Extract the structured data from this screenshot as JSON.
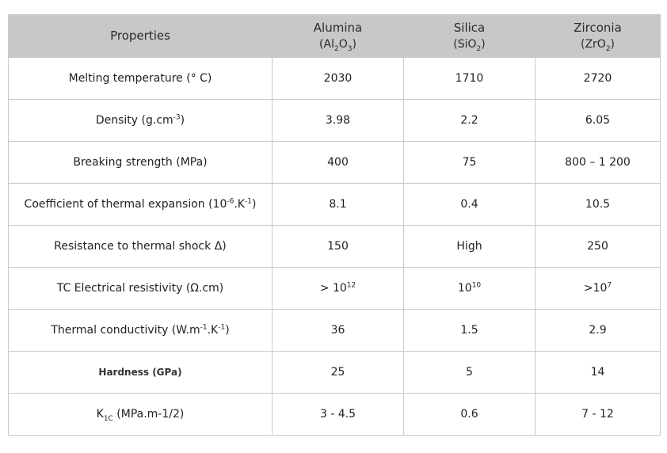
{
  "header": {
    "properties": "Properties",
    "materials": [
      {
        "name": "Alumina",
        "formula_pre": "(Al",
        "sub1": "2",
        "formula_mid": "O",
        "sub2": "3",
        "formula_post": ")"
      },
      {
        "name": "Silica",
        "formula_pre": "(SiO",
        "sub1": "2",
        "formula_mid": "",
        "sub2": "",
        "formula_post": ")"
      },
      {
        "name": "Zirconia",
        "formula_pre": "(ZrO",
        "sub1": "2",
        "formula_mid": "",
        "sub2": "",
        "formula_post": ")"
      }
    ]
  },
  "rows": [
    {
      "label": "Melting temperature (° C)",
      "values": [
        "2030",
        "1710",
        "2720"
      ]
    },
    {
      "label_pre": "Density (g.cm",
      "label_sup": "-3",
      "label_post": ")",
      "values": [
        "3.98",
        "2.2",
        "6.05"
      ]
    },
    {
      "label": "Breaking strength (MPa)",
      "values": [
        "400",
        "75",
        "800 – 1 200"
      ]
    },
    {
      "label_pre": "Coefficient of thermal expansion (10",
      "label_sup": "-6",
      "label_mid": ".K",
      "label_sup2": "-1",
      "label_post": ")",
      "values": [
        "8.1",
        "0.4",
        "10.5"
      ]
    },
    {
      "label": "Resistance to thermal shock Δ)",
      "values": [
        "150",
        "High",
        "250"
      ]
    },
    {
      "label": "TC Electrical resistivity (Ω.cm)",
      "values_rich": [
        {
          "pre": "> 10",
          "sup": "12"
        },
        {
          "pre": "10",
          "sup": "10"
        },
        {
          "pre": ">10",
          "sup": "7"
        }
      ]
    },
    {
      "label_pre": "Thermal conductivity (W.m",
      "label_sup": "-1",
      "label_mid": ".K",
      "label_sup2": "-1",
      "label_post": ")",
      "values": [
        "36",
        "1.5",
        "2.9"
      ]
    },
    {
      "label": "Hardness (GPa)",
      "values": [
        "25",
        "5",
        "14"
      ]
    },
    {
      "label_pre": "K",
      "label_sub": "1C",
      "label_post": " (MPa.m-1/2)",
      "values": [
        "3 - 4.5",
        "0.6",
        "7 - 12"
      ]
    }
  ]
}
